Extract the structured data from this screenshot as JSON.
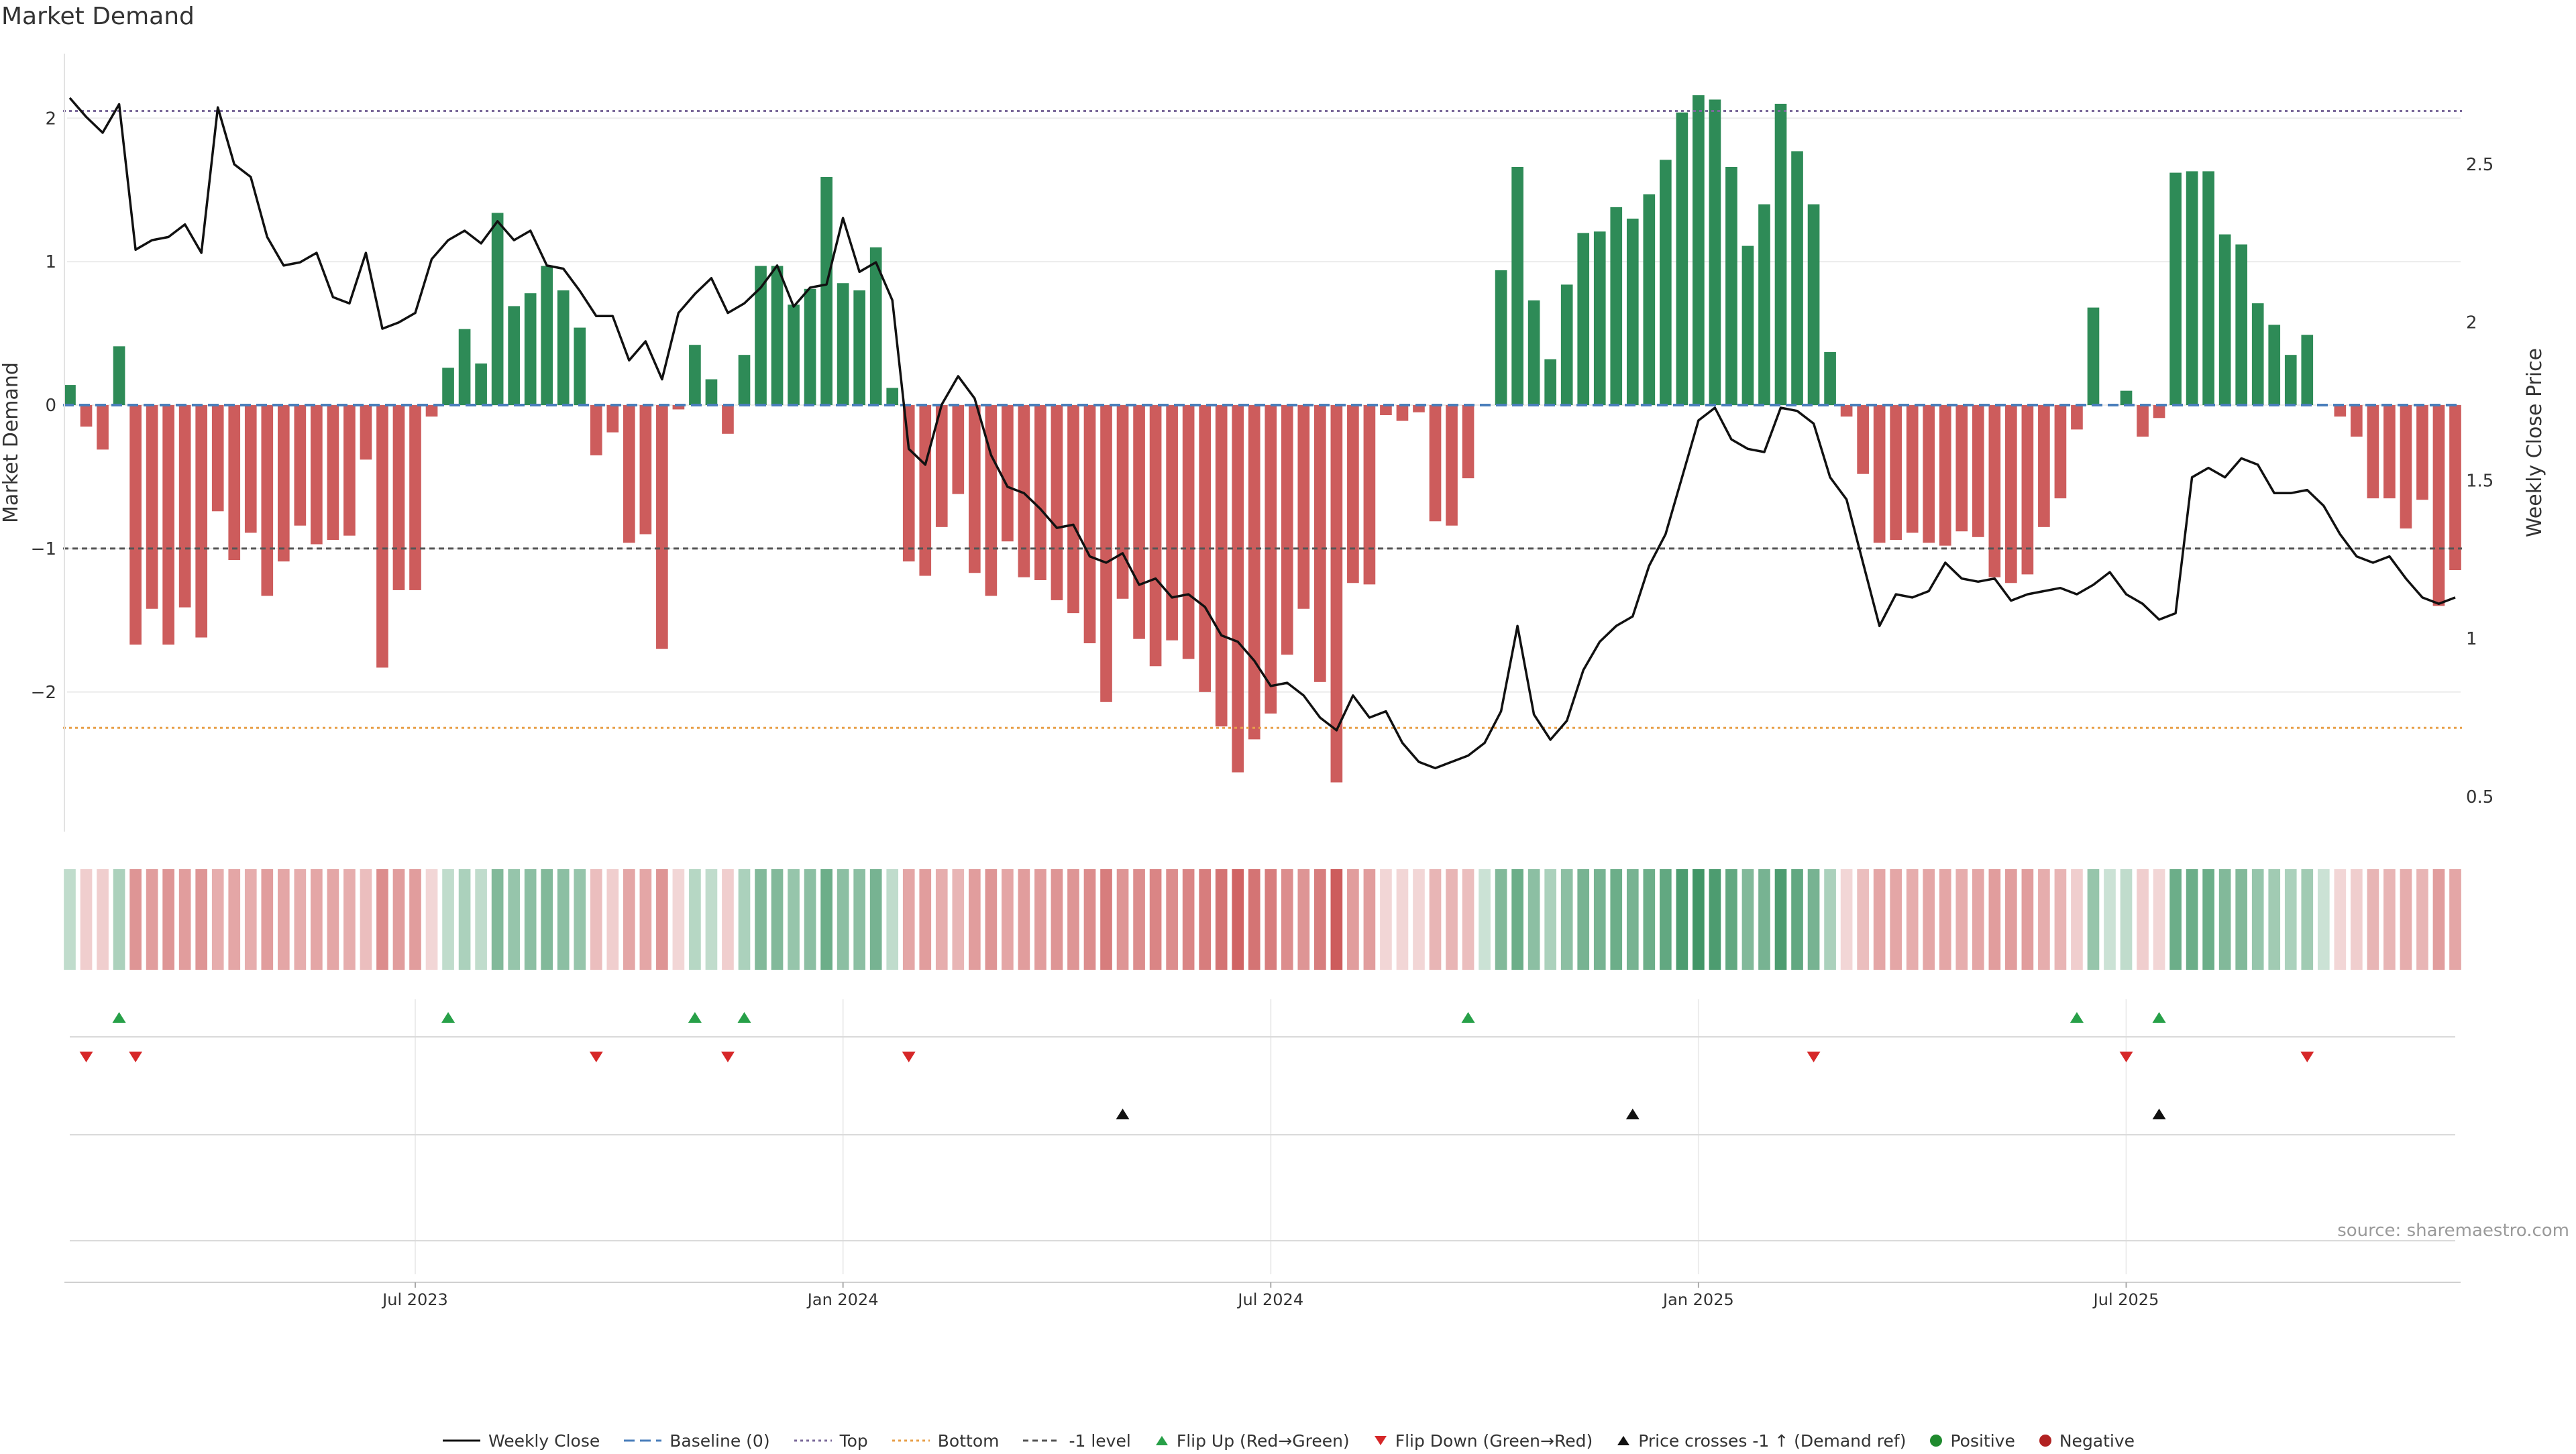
{
  "chart_data": {
    "type": "bar",
    "title": "Market Demand",
    "ylabel_left": "Market Demand",
    "ylabel_right": "Weekly Close Price",
    "ylim_left": [
      -2.95,
      2.45
    ],
    "ylim_right": [
      0.4,
      2.85
    ],
    "yticks_left": [
      "2",
      "1",
      "0",
      "−1",
      "−2"
    ],
    "yticks_left_values": [
      2,
      1,
      0,
      -1,
      -2
    ],
    "yticks_right": [
      "2.5",
      "2",
      "1.5",
      "1",
      "0.5"
    ],
    "yticks_right_values": [
      2.5,
      2,
      1.5,
      1,
      0.5
    ],
    "x_tick_labels": [
      "Jul 2023",
      "Jan 2024",
      "Jul 2024",
      "Jan 2025",
      "Jul 2025"
    ],
    "x_tick_weeks": [
      21,
      47,
      73,
      99,
      125
    ],
    "levels": {
      "top": 2.05,
      "bottom": -2.25,
      "minus_one": -1,
      "baseline": 0
    },
    "colors": {
      "positive": "#2e8b57",
      "negative": "#cd5c5c",
      "close": "#111111",
      "baseline": "#4a7ebb",
      "top": "#7b6a9a",
      "bottom": "#e8a04a",
      "flip_up": "#27a048",
      "flip_down": "#d62728",
      "cross": "#111111",
      "pos_dot": "#1f8a2e",
      "neg_dot": "#b22222"
    },
    "demand": [
      0.14,
      -0.15,
      -0.31,
      0.41,
      -1.67,
      -1.42,
      -1.67,
      -1.41,
      -1.62,
      -0.74,
      -1.08,
      -0.89,
      -1.33,
      -1.09,
      -0.84,
      -0.97,
      -0.94,
      -0.91,
      -0.38,
      -1.83,
      -1.29,
      -1.29,
      -0.08,
      0.26,
      0.53,
      0.29,
      1.34,
      0.69,
      0.78,
      0.97,
      0.8,
      0.54,
      -0.35,
      -0.19,
      -0.96,
      -0.9,
      -1.7,
      -0.03,
      0.42,
      0.18,
      -0.2,
      0.35,
      0.97,
      0.97,
      0.7,
      0.81,
      1.59,
      0.85,
      0.8,
      1.1,
      0.12,
      -1.09,
      -1.19,
      -0.85,
      -0.62,
      -1.17,
      -1.33,
      -0.95,
      -1.2,
      -1.22,
      -1.36,
      -1.45,
      -1.66,
      -2.07,
      -1.35,
      -1.63,
      -1.82,
      -1.64,
      -1.77,
      -2.0,
      -2.24,
      -2.56,
      -2.33,
      -2.15,
      -1.74,
      -1.42,
      -1.93,
      -2.63,
      -1.24,
      -1.25,
      -0.07,
      -0.11,
      -0.05,
      -0.81,
      -0.84,
      -0.51,
      0.0,
      0.94,
      1.66,
      0.73,
      0.32,
      0.84,
      1.2,
      1.21,
      1.38,
      1.3,
      1.47,
      1.71,
      2.04,
      2.16,
      2.13,
      1.66,
      1.11,
      1.4,
      2.1,
      1.77,
      1.4,
      0.37,
      -0.08,
      -0.48,
      -0.96,
      -0.94,
      -0.89,
      -0.96,
      -0.98,
      -0.88,
      -0.92,
      -1.2,
      -1.24,
      -1.18,
      -0.85,
      -0.65,
      -0.17,
      0.68,
      0.0,
      0.1,
      -0.22,
      -0.09,
      1.62,
      1.63,
      1.63,
      1.19,
      1.12,
      0.71,
      0.56,
      0.35,
      0.49,
      0.0,
      -0.08,
      -0.22,
      -0.65,
      -0.65,
      -0.86,
      -0.66,
      -1.4,
      -1.15
    ],
    "weekly_close": [
      2.71,
      2.65,
      2.6,
      2.69,
      2.23,
      2.26,
      2.27,
      2.31,
      2.22,
      2.68,
      2.5,
      2.46,
      2.27,
      2.18,
      2.19,
      2.22,
      2.08,
      2.06,
      2.22,
      1.98,
      2.0,
      2.03,
      2.2,
      2.26,
      2.29,
      2.25,
      2.32,
      2.26,
      2.29,
      2.18,
      2.17,
      2.1,
      2.02,
      2.02,
      1.88,
      1.94,
      1.82,
      2.03,
      2.09,
      2.14,
      2.03,
      2.06,
      2.11,
      2.18,
      2.05,
      2.11,
      2.12,
      2.33,
      2.16,
      2.19,
      2.07,
      1.6,
      1.55,
      1.74,
      1.83,
      1.76,
      1.58,
      1.48,
      1.46,
      1.41,
      1.35,
      1.36,
      1.26,
      1.24,
      1.27,
      1.17,
      1.19,
      1.13,
      1.14,
      1.1,
      1.01,
      0.99,
      0.93,
      0.85,
      0.86,
      0.82,
      0.75,
      0.71,
      0.82,
      0.75,
      0.77,
      0.67,
      0.61,
      0.59,
      0.61,
      0.63,
      0.67,
      0.77,
      1.04,
      0.76,
      0.68,
      0.74,
      0.9,
      0.99,
      1.04,
      1.07,
      1.23,
      1.33,
      1.51,
      1.69,
      1.73,
      1.63,
      1.6,
      1.59,
      1.73,
      1.72,
      1.68,
      1.51,
      1.44,
      1.24,
      1.04,
      1.14,
      1.13,
      1.15,
      1.24,
      1.19,
      1.18,
      1.19,
      1.12,
      1.14,
      1.15,
      1.16,
      1.14,
      1.17,
      1.21,
      1.14,
      1.11,
      1.06,
      1.08,
      1.51,
      1.54,
      1.51,
      1.57,
      1.55,
      1.46,
      1.46,
      1.47,
      1.42,
      1.33,
      1.26,
      1.24,
      1.26,
      1.19,
      1.13,
      1.11,
      1.13
    ],
    "strip_alpha": [
      0.3,
      0.3,
      0.3,
      0.4,
      0.65,
      0.6,
      0.65,
      0.6,
      0.65,
      0.5,
      0.55,
      0.5,
      0.6,
      0.55,
      0.5,
      0.55,
      0.55,
      0.5,
      0.4,
      0.7,
      0.6,
      0.6,
      0.25,
      0.3,
      0.4,
      0.3,
      0.6,
      0.5,
      0.55,
      0.6,
      0.55,
      0.5,
      0.4,
      0.3,
      0.55,
      0.55,
      0.65,
      0.25,
      0.35,
      0.3,
      0.3,
      0.4,
      0.6,
      0.6,
      0.5,
      0.55,
      0.7,
      0.55,
      0.55,
      0.65,
      0.3,
      0.55,
      0.6,
      0.5,
      0.45,
      0.6,
      0.65,
      0.55,
      0.6,
      0.6,
      0.65,
      0.65,
      0.7,
      0.8,
      0.65,
      0.7,
      0.75,
      0.7,
      0.75,
      0.8,
      0.85,
      0.95,
      0.85,
      0.8,
      0.7,
      0.65,
      0.8,
      1.0,
      0.6,
      0.6,
      0.25,
      0.25,
      0.25,
      0.45,
      0.45,
      0.4,
      0.25,
      0.6,
      0.7,
      0.55,
      0.4,
      0.55,
      0.65,
      0.65,
      0.7,
      0.65,
      0.7,
      0.75,
      0.85,
      0.9,
      0.85,
      0.75,
      0.6,
      0.65,
      0.85,
      0.75,
      0.65,
      0.4,
      0.25,
      0.4,
      0.55,
      0.55,
      0.5,
      0.55,
      0.55,
      0.5,
      0.55,
      0.6,
      0.6,
      0.6,
      0.5,
      0.45,
      0.3,
      0.5,
      0.25,
      0.3,
      0.3,
      0.25,
      0.7,
      0.7,
      0.7,
      0.6,
      0.6,
      0.5,
      0.45,
      0.4,
      0.45,
      0.25,
      0.25,
      0.3,
      0.45,
      0.45,
      0.5,
      0.45,
      0.6,
      0.55
    ],
    "flip_up_weeks": [
      3,
      23,
      38,
      41,
      85,
      122,
      127
    ],
    "flip_down_weeks": [
      1,
      4,
      32,
      40,
      51,
      106,
      125,
      136
    ],
    "cross_weeks": [
      64,
      95,
      127
    ],
    "legend": [
      "Weekly Close",
      "Baseline (0)",
      "Top",
      "Bottom",
      "-1 level",
      "Flip Up (Red→Green)",
      "Flip Down (Green→Red)",
      "Price crosses -1 ↑ (Demand ref)",
      "Positive",
      "Negative"
    ]
  },
  "source": "source: sharemaestro.com"
}
